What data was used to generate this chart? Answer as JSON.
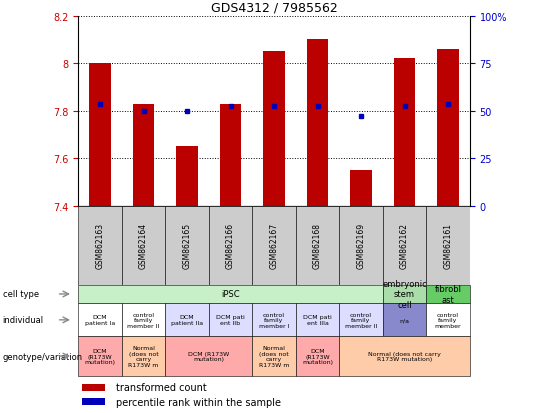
{
  "title": "GDS4312 / 7985562",
  "samples": [
    "GSM862163",
    "GSM862164",
    "GSM862165",
    "GSM862166",
    "GSM862167",
    "GSM862168",
    "GSM862169",
    "GSM862162",
    "GSM862161"
  ],
  "bar_tops": [
    8.0,
    7.83,
    7.65,
    7.83,
    8.05,
    8.1,
    7.55,
    8.02,
    8.06
  ],
  "bar_bottom": 7.4,
  "dot_values": [
    7.83,
    7.8,
    7.8,
    7.82,
    7.82,
    7.82,
    7.78,
    7.82,
    7.83
  ],
  "ylim": [
    7.4,
    8.2
  ],
  "yticks_left": [
    7.4,
    7.6,
    7.8,
    8.0,
    8.2
  ],
  "ytick_labels_left": [
    "7.4",
    "7.6",
    "7.8",
    "8",
    "8.2"
  ],
  "yticks_right_vals": [
    7.4,
    7.6,
    7.8,
    8.0,
    8.2
  ],
  "ytick_labels_right": [
    "0",
    "25",
    "50",
    "75",
    "100%"
  ],
  "bar_color": "#bb0000",
  "dot_color": "#0000bb",
  "cell_type_blocks": [
    {
      "label": "iPSC",
      "start": 0,
      "end": 7,
      "color": "#c8f0c8"
    },
    {
      "label": "embryonic\nstem\ncell",
      "start": 7,
      "end": 8,
      "color": "#aaddaa"
    },
    {
      "label": "fibrobl\nast",
      "start": 8,
      "end": 9,
      "color": "#66cc66"
    }
  ],
  "individual_cells": [
    {
      "label": "DCM\npatient Ia",
      "color": "#ffffff"
    },
    {
      "label": "control\nfamily\nmember II",
      "color": "#ffffff"
    },
    {
      "label": "DCM\npatient IIa",
      "color": "#ddddff"
    },
    {
      "label": "DCM pati\nent IIb",
      "color": "#ddddff"
    },
    {
      "label": "control\nfamily\nmember I",
      "color": "#ddddff"
    },
    {
      "label": "DCM pati\nent IIIa",
      "color": "#ddddff"
    },
    {
      "label": "control\nfamily\nmember II",
      "color": "#ddddff"
    },
    {
      "label": "n/a",
      "color": "#8888cc"
    },
    {
      "label": "control\nfamily\nmember",
      "color": "#ffffff"
    }
  ],
  "genotype_blocks": [
    {
      "label": "DCM\n(R173W\nmutation)",
      "start": 0,
      "end": 1,
      "color": "#ffaaaa"
    },
    {
      "label": "Normal\n(does not\ncarry\nR173W m",
      "start": 1,
      "end": 2,
      "color": "#ffccaa"
    },
    {
      "label": "DCM (R173W\nmutation)",
      "start": 2,
      "end": 4,
      "color": "#ffaaaa"
    },
    {
      "label": "Normal\n(does not\ncarry\nR173W m",
      "start": 4,
      "end": 5,
      "color": "#ffccaa"
    },
    {
      "label": "DCM\n(R173W\nmutation)",
      "start": 5,
      "end": 6,
      "color": "#ffaaaa"
    },
    {
      "label": "Normal (does not carry\nR173W mutation)",
      "start": 6,
      "end": 9,
      "color": "#ffccaa"
    }
  ],
  "row_labels": [
    "cell type",
    "individual",
    "genotype/variation"
  ],
  "legend_items": [
    {
      "color": "#bb0000",
      "label": "transformed count"
    },
    {
      "color": "#0000bb",
      "label": "percentile rank within the sample"
    }
  ],
  "left_color": "#cc0000",
  "right_color": "#0000cc"
}
